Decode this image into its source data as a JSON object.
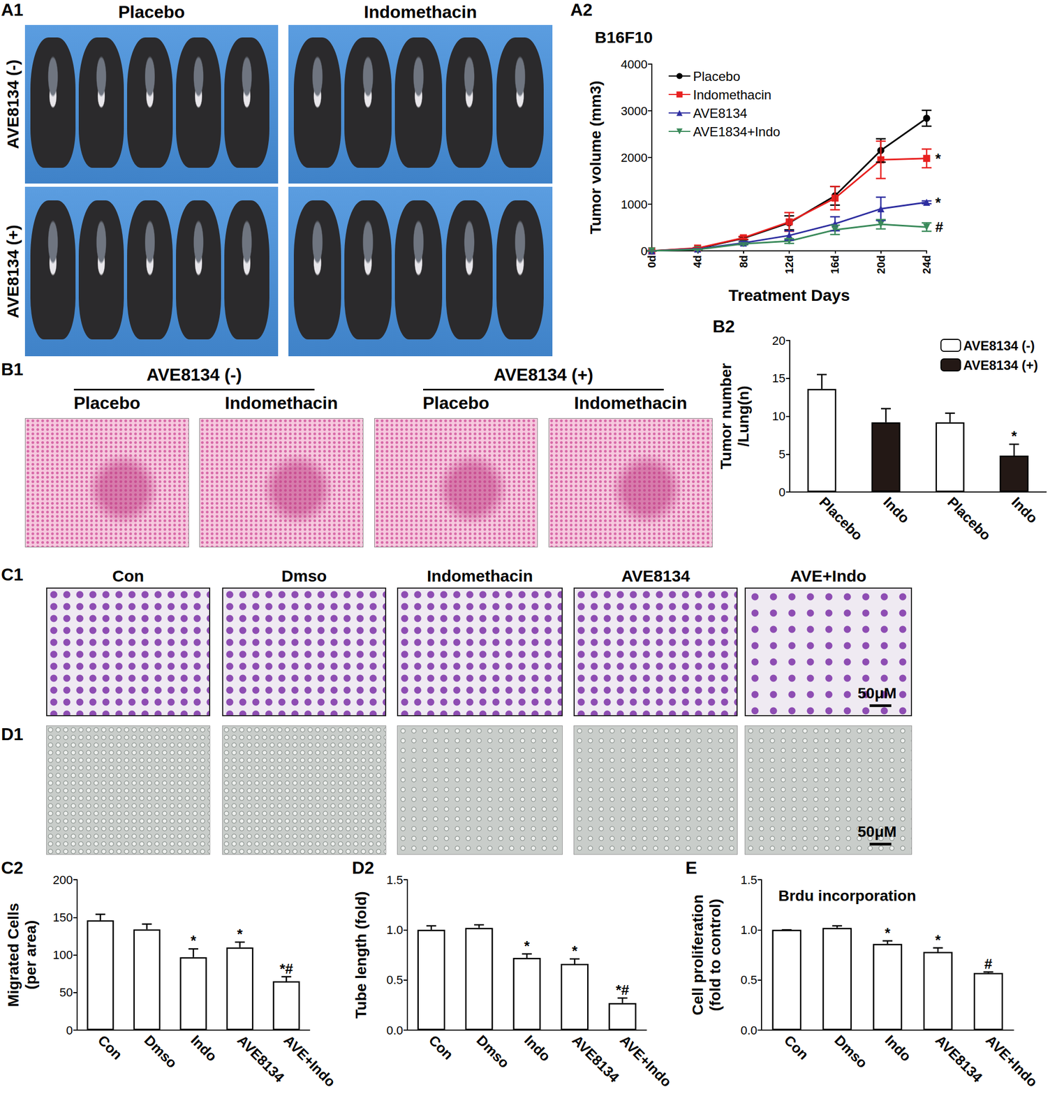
{
  "panels": {
    "A1": {
      "label": "A1",
      "columns": [
        "Placebo",
        "Indomethacin"
      ],
      "rows": [
        "AVE8134 (-)",
        "AVE8134 (+)"
      ]
    },
    "B1": {
      "label": "B1",
      "groups": [
        {
          "title": "AVE8134 (-)",
          "columns": [
            "Placebo",
            "Indomethacin"
          ]
        },
        {
          "title": "AVE8134 (+)",
          "columns": [
            "Placebo",
            "Indomethacin"
          ]
        }
      ]
    },
    "C1": {
      "label": "C1",
      "columns": [
        "Con",
        "Dmso",
        "Indomethacin",
        "AVE8134",
        "AVE+Indo"
      ],
      "scale_bar": "50μM"
    },
    "D1": {
      "label": "D1",
      "scale_bar": "50μM"
    }
  },
  "chart_data": [
    {
      "panel": "A2",
      "type": "line",
      "title": "B16F10",
      "x_label": "Treatment Days",
      "y_label": [
        "Tumor volume (mm3)"
      ],
      "categories": [
        "0d",
        "4d",
        "8d",
        "12d",
        "16d",
        "20d",
        "24d"
      ],
      "ylim": [
        0,
        4000
      ],
      "yticks": [
        0,
        1000,
        2000,
        3000,
        4000
      ],
      "grid": false,
      "legend": "top-left",
      "series": [
        {
          "name": "Placebo",
          "color": "#000000",
          "marker": "circle",
          "values": [
            0,
            50,
            270,
            600,
            1180,
            2150,
            2840
          ],
          "errors": [
            0,
            10,
            30,
            150,
            200,
            250,
            170
          ]
        },
        {
          "name": "Indomethacin",
          "color": "#e8201f",
          "marker": "square",
          "values": [
            0,
            60,
            280,
            620,
            1130,
            1950,
            1980
          ],
          "errors": [
            0,
            10,
            30,
            200,
            250,
            400,
            200
          ]
        },
        {
          "name": "AVE8134",
          "color": "#2e2ea0",
          "marker": "triangle",
          "values": [
            0,
            40,
            170,
            330,
            580,
            900,
            1040
          ],
          "errors": [
            0,
            10,
            30,
            100,
            150,
            250,
            30
          ]
        },
        {
          "name": "AVE1834+Indo",
          "color": "#3a8a5a",
          "marker": "triangle-down",
          "values": [
            0,
            30,
            150,
            210,
            450,
            570,
            510
          ],
          "errors": [
            0,
            10,
            20,
            50,
            100,
            100,
            90
          ]
        }
      ],
      "annotations": [
        {
          "text": "*",
          "x": "24d",
          "y": 1980
        },
        {
          "text": "*",
          "x": "24d",
          "y": 1040
        },
        {
          "text": "#",
          "x": "24d",
          "y": 510
        }
      ]
    },
    {
      "panel": "B2",
      "type": "bar",
      "y_label": [
        "Tumor number",
        "/Lung(n)"
      ],
      "categories": [
        "Placebo",
        "Indo",
        "Placebo",
        "Indo"
      ],
      "ylim": [
        0,
        20
      ],
      "yticks": [
        0,
        5,
        10,
        15,
        20
      ],
      "grid": false,
      "legend": "top-right",
      "series": [
        {
          "name": "AVE8134 (-)",
          "color": "#ffffff",
          "values": [
            13.6,
            null,
            9.2,
            null
          ],
          "errors": [
            1.9,
            null,
            1.2,
            null
          ],
          "marks": [
            null,
            null,
            null,
            null
          ]
        },
        {
          "name": "AVE8134 (+)",
          "color": "#231815",
          "values": [
            null,
            9.2,
            null,
            4.8
          ],
          "errors": [
            null,
            1.8,
            null,
            1.5
          ],
          "marks": [
            null,
            null,
            null,
            "*"
          ]
        }
      ]
    },
    {
      "panel": "C2",
      "type": "bar",
      "y_label": [
        "Migrated Cells",
        "(per area)"
      ],
      "categories": [
        "Con",
        "Dmso",
        "Indo",
        "AVE8134",
        "AVE+Indo"
      ],
      "ylim": [
        0,
        200
      ],
      "yticks": [
        0,
        50,
        100,
        150,
        200
      ],
      "grid": false,
      "color": "#ffffff",
      "values": [
        146,
        134,
        97,
        110,
        65
      ],
      "errors": [
        8,
        7,
        11,
        7,
        6
      ],
      "marks": [
        null,
        null,
        "*",
        "*",
        "*#"
      ]
    },
    {
      "panel": "D2",
      "type": "bar",
      "y_label": [
        "Tube length (fold)"
      ],
      "categories": [
        "Con",
        "Dmso",
        "Indo",
        "AVE8134",
        "AVE+Indo"
      ],
      "ylim": [
        0,
        1.5
      ],
      "yticks": [
        {
          "value": 0,
          "label": "0.0"
        },
        0.5,
        {
          "value": 1,
          "label": "1.0"
        },
        1.5
      ],
      "grid": false,
      "color": "#ffffff",
      "values": [
        1.0,
        1.02,
        0.72,
        0.66,
        0.27
      ],
      "errors": [
        0.04,
        0.03,
        0.04,
        0.05,
        0.05
      ],
      "marks": [
        null,
        null,
        "*",
        "*",
        "*#"
      ]
    },
    {
      "panel": "E",
      "type": "bar",
      "title": "Brdu incorporation",
      "y_label": [
        "Cell proliferation",
        "(fold to control)"
      ],
      "categories": [
        "Con",
        "Dmso",
        "Indo",
        "AVE8134",
        "AVE+Indo"
      ],
      "ylim": [
        0,
        1.5
      ],
      "yticks": [
        {
          "value": 0,
          "label": "0.0"
        },
        0.5,
        {
          "value": 1,
          "label": "1.0"
        },
        1.5
      ],
      "grid": false,
      "color": "#ffffff",
      "values": [
        1.0,
        1.02,
        0.86,
        0.78,
        0.57
      ],
      "errors": [
        0,
        0.02,
        0.03,
        0.04,
        0.01
      ],
      "marks": [
        null,
        null,
        "*",
        "*",
        "#"
      ]
    }
  ]
}
